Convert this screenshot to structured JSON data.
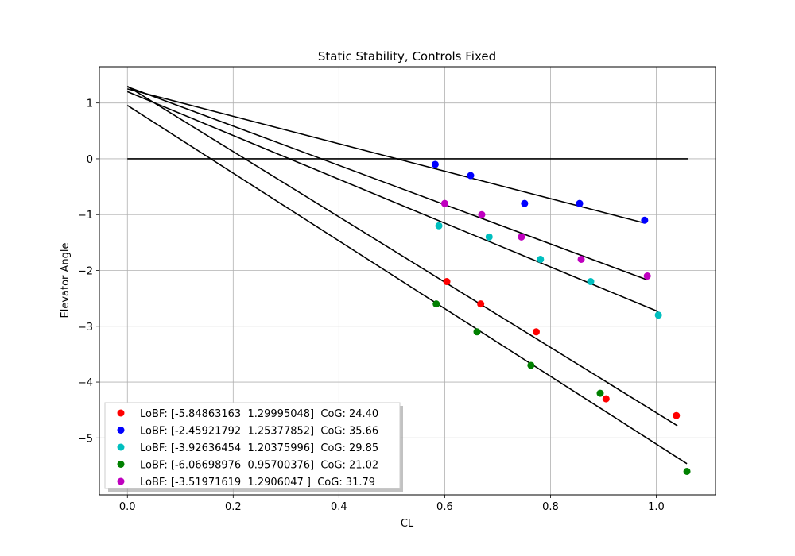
{
  "chart_data": {
    "type": "scatter",
    "title": "Static Stability, Controls Fixed",
    "xlabel": "CL",
    "ylabel": "Elevator Angle",
    "xlim": [
      -0.053,
      1.112
    ],
    "ylim": [
      -6.02,
      1.65
    ],
    "xticks": [
      0.0,
      0.2,
      0.4,
      0.6,
      0.8,
      1.0
    ],
    "xtick_labels": [
      "0.0",
      "0.2",
      "0.4",
      "0.6",
      "0.8",
      "1.0"
    ],
    "yticks": [
      1,
      0,
      -1,
      -2,
      -3,
      -4,
      -5
    ],
    "ytick_labels": [
      "1",
      "0",
      "−1",
      "−2",
      "−3",
      "−4",
      "−5"
    ],
    "grid": true,
    "legend_position": "lower-left",
    "zero_line": {
      "x": [
        0.0,
        1.06
      ],
      "y": 0
    },
    "series": [
      {
        "name": "LoBF: [-5.84863163  1.29995048]  CoG: 24.40",
        "color": "#ff0000",
        "x": [
          0.604,
          0.668,
          0.773,
          0.905,
          1.038
        ],
        "y": [
          -2.2,
          -2.6,
          -3.1,
          -4.3,
          -4.6
        ],
        "fit": {
          "slope": -5.84863163,
          "intercept": 1.29995048,
          "x_range": [
            0.0,
            1.04
          ]
        }
      },
      {
        "name": "LoBF: [-2.45921792  1.25377852]  CoG: 35.66",
        "color": "#0000ff",
        "x": [
          0.582,
          0.649,
          0.751,
          0.855,
          0.978
        ],
        "y": [
          -0.1,
          -0.3,
          -0.8,
          -0.8,
          -1.1
        ],
        "fit": {
          "slope": -2.45921792,
          "intercept": 1.25377852,
          "x_range": [
            0.0,
            0.978
          ]
        }
      },
      {
        "name": "LoBF: [-3.92636454  1.20375996]  CoG: 29.85",
        "color": "#00bfbf",
        "x": [
          0.589,
          0.684,
          0.781,
          0.876,
          1.004
        ],
        "y": [
          -1.2,
          -1.4,
          -1.8,
          -2.2,
          -2.8
        ],
        "fit": {
          "slope": -3.92636454,
          "intercept": 1.20375996,
          "x_range": [
            0.0,
            1.004
          ]
        }
      },
      {
        "name": "LoBF: [-6.06698976  0.95700376]  CoG: 21.02",
        "color": "#008000",
        "x": [
          0.584,
          0.661,
          0.763,
          0.894,
          1.058
        ],
        "y": [
          -2.6,
          -3.1,
          -3.7,
          -4.2,
          -5.6
        ],
        "fit": {
          "slope": -6.06698976,
          "intercept": 0.95700376,
          "x_range": [
            0.0,
            1.058
          ]
        }
      },
      {
        "name": "LoBF: [-3.51971619  1.2906047 ]  CoG: 31.79",
        "color": "#bf00bf",
        "x": [
          0.6,
          0.67,
          0.745,
          0.858,
          0.983
        ],
        "y": [
          -0.8,
          -1.0,
          -1.4,
          -1.8,
          -2.1
        ],
        "fit": {
          "slope": -3.51971619,
          "intercept": 1.2906047,
          "x_range": [
            0.0,
            0.983
          ]
        }
      }
    ]
  }
}
